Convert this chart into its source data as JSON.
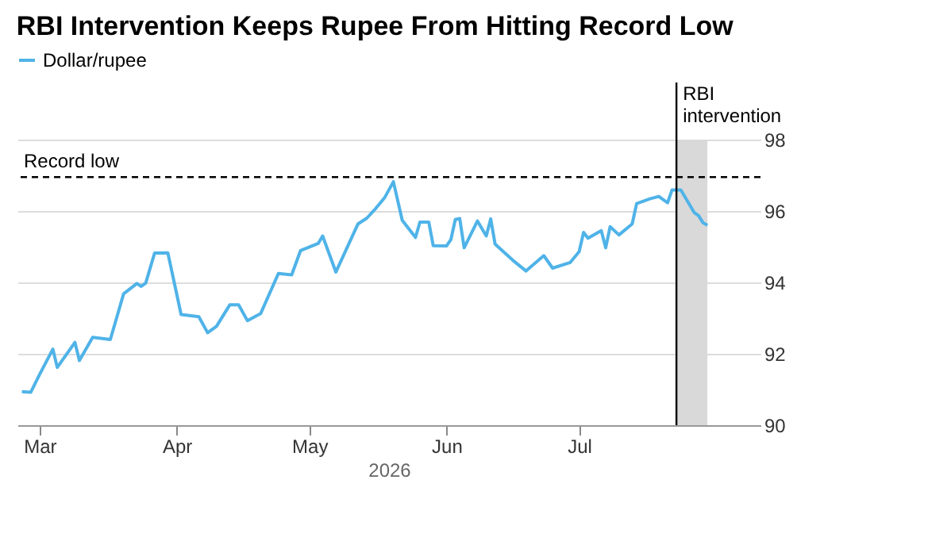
{
  "chart_data": {
    "type": "line",
    "title": "RBI Intervention Keeps Rupee From Hitting Record Low",
    "xlabel": "2026",
    "x": [
      "2026-02-25",
      "2026-02-27",
      "2026-03-01",
      "2026-03-04",
      "2026-03-05",
      "2026-03-09",
      "2026-03-10",
      "2026-03-13",
      "2026-03-17",
      "2026-03-20",
      "2026-03-23",
      "2026-03-24",
      "2026-03-25",
      "2026-03-27",
      "2026-03-30",
      "2026-04-02",
      "2026-04-06",
      "2026-04-08",
      "2026-04-10",
      "2026-04-13",
      "2026-04-15",
      "2026-04-17",
      "2026-04-20",
      "2026-04-24",
      "2026-04-27",
      "2026-04-29",
      "2026-05-03",
      "2026-05-04",
      "2026-05-07",
      "2026-05-12",
      "2026-05-14",
      "2026-05-16",
      "2026-05-18",
      "2026-05-20",
      "2026-05-22",
      "2026-05-25",
      "2026-05-26",
      "2026-05-28",
      "2026-05-29",
      "2026-06-01",
      "2026-06-02",
      "2026-06-03",
      "2026-06-04",
      "2026-06-05",
      "2026-06-08",
      "2026-06-10",
      "2026-06-11",
      "2026-06-12",
      "2026-06-16",
      "2026-06-19",
      "2026-06-23",
      "2026-06-25",
      "2026-06-29",
      "2026-07-01",
      "2026-07-02",
      "2026-07-03",
      "2026-07-06",
      "2026-07-07",
      "2026-07-08",
      "2026-07-10",
      "2026-07-13",
      "2026-07-14",
      "2026-07-17",
      "2026-07-19",
      "2026-07-21",
      "2026-07-22",
      "2026-07-24",
      "2026-07-27",
      "2026-07-28",
      "2026-07-29",
      "2026-07-30"
    ],
    "series": [
      {
        "name": "Dollar/rupee",
        "color": "#4fb3e8",
        "values": [
          90.94,
          90.92,
          91.42,
          92.13,
          91.62,
          92.32,
          91.81,
          92.46,
          92.4,
          93.68,
          93.97,
          93.89,
          93.98,
          94.82,
          94.83,
          93.1,
          93.04,
          92.59,
          92.77,
          93.37,
          93.37,
          92.93,
          93.13,
          94.25,
          94.21,
          94.89,
          95.09,
          95.3,
          94.29,
          95.64,
          95.8,
          96.07,
          96.37,
          96.82,
          95.74,
          95.26,
          95.69,
          95.69,
          95.03,
          95.02,
          95.2,
          95.76,
          95.79,
          94.97,
          95.72,
          95.3,
          95.78,
          95.07,
          94.62,
          94.32,
          94.75,
          94.4,
          94.56,
          94.86,
          95.4,
          95.24,
          95.45,
          94.97,
          95.56,
          95.33,
          95.64,
          96.21,
          96.34,
          96.41,
          96.23,
          96.59,
          96.59,
          95.96,
          95.87,
          95.67,
          95.6
        ]
      }
    ],
    "xlim": [
      "2026-02-24",
      "2026-08-11"
    ],
    "xticks": [
      {
        "value": "2026-03-01",
        "label": "Mar"
      },
      {
        "value": "2026-04-01",
        "label": "Apr"
      },
      {
        "value": "2026-05-01",
        "label": "May"
      },
      {
        "value": "2026-06-01",
        "label": "Jun"
      },
      {
        "value": "2026-07-01",
        "label": "Jul"
      }
    ],
    "ylim": [
      90,
      98
    ],
    "yticks": [
      90,
      92,
      94,
      96,
      98
    ],
    "grid": "y",
    "legend": "top left",
    "line_style": "solid",
    "marker": "none",
    "ref_lines": [
      {
        "axis": "y",
        "value": 96.95,
        "label": "Record low",
        "color": "#000000",
        "line_style": "dashed"
      },
      {
        "axis": "x",
        "value": "2026-07-23",
        "label": "RBI\nintervention",
        "color": "#000000",
        "line_style": "solid"
      }
    ],
    "bands": [
      {
        "axis": "x",
        "from": "2026-07-23",
        "to": "2026-07-30",
        "color": "#d9d9d9"
      }
    ]
  }
}
